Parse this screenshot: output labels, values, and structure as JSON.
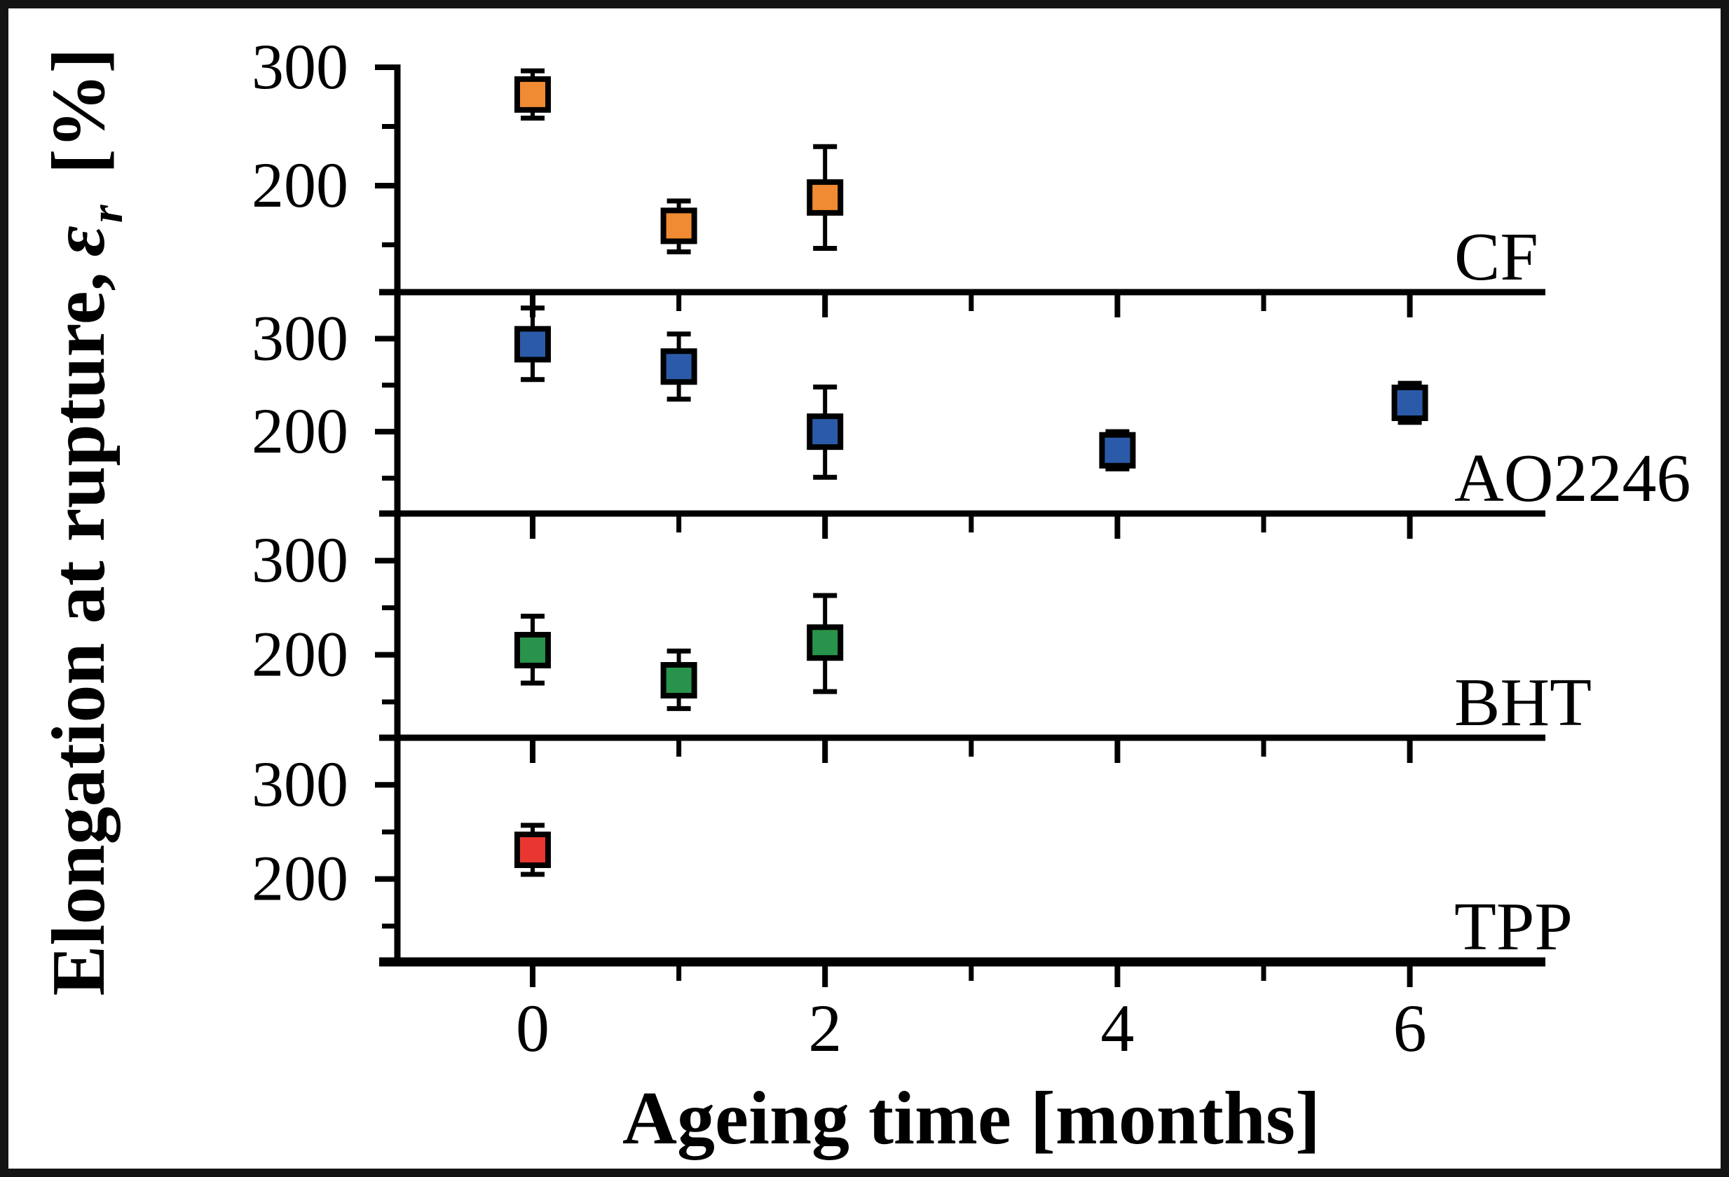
{
  "figure": {
    "background": "#ffffff",
    "border_color": "#141414",
    "axis_color": "#000000",
    "text_color": "#000000"
  },
  "chart_data": {
    "type": "scatter",
    "title": "",
    "xlabel": "Ageing time [months]",
    "ylabel": {
      "text": "Elongation at rupture,",
      "symbol": "ε",
      "subscript": "r",
      "unit": "[%]"
    },
    "x_axis": {
      "range": [
        -0.95,
        6.93
      ],
      "major_ticks": [
        0,
        2,
        4,
        6
      ],
      "minor_ticks": [
        1,
        3,
        5
      ],
      "grid": false
    },
    "y_axis": {
      "major_ticks": [
        300,
        200
      ],
      "minor_ticks": [
        250,
        150
      ],
      "grid": false
    },
    "legend_position": "right-inside-each-panel",
    "panels": [
      {
        "label": "CF",
        "color": "#F08B33",
        "ylim": [
          110,
          300
        ],
        "points": [
          {
            "x": 0,
            "y": 277,
            "err_up": 20,
            "err_down": 20
          },
          {
            "x": 1,
            "y": 166,
            "err_up": 21,
            "err_down": 22
          },
          {
            "x": 2,
            "y": 190,
            "err_up": 43,
            "err_down": 43
          }
        ]
      },
      {
        "label": "AO2246",
        "color": "#2B5BA8",
        "ylim": [
          112,
          350
        ],
        "points": [
          {
            "x": 0,
            "y": 294,
            "err_up": 39,
            "err_down": 38
          },
          {
            "x": 1,
            "y": 270,
            "err_up": 35,
            "err_down": 35
          },
          {
            "x": 2,
            "y": 200,
            "err_up": 48,
            "err_down": 49
          },
          {
            "x": 4,
            "y": 180,
            "err_up": 20,
            "err_down": 20
          },
          {
            "x": 6,
            "y": 231,
            "err_up": 21,
            "err_down": 21
          }
        ]
      },
      {
        "label": "BHT",
        "color": "#28934A",
        "ylim": [
          112,
          350
        ],
        "points": [
          {
            "x": 0,
            "y": 205,
            "err_up": 36,
            "err_down": 35
          },
          {
            "x": 1,
            "y": 173,
            "err_up": 31,
            "err_down": 30
          },
          {
            "x": 2,
            "y": 213,
            "err_up": 50,
            "err_down": 52
          }
        ]
      },
      {
        "label": "TPP",
        "color": "#E93630",
        "ylim": [
          112,
          350
        ],
        "points": [
          {
            "x": 0,
            "y": 231,
            "err_up": 26,
            "err_down": 26
          }
        ]
      }
    ]
  }
}
